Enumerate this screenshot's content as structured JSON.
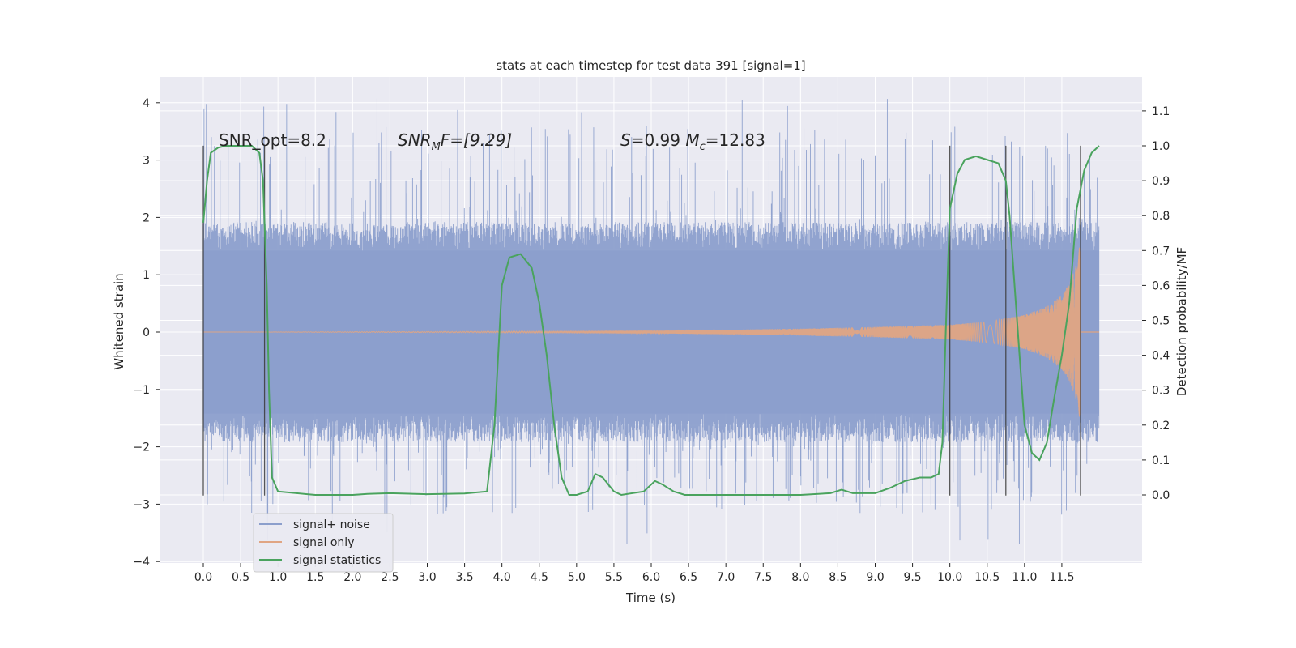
{
  "chart_data": {
    "type": "line",
    "title": "stats at each timestep for test data 391 [signal=1]",
    "xlabel": "Time (s)",
    "ylabel": "Whitened strain",
    "ylabel_right": "Detection probability/MF",
    "xlim": [
      -0.6,
      12.6
    ],
    "ylim": [
      -4.05,
      4.45
    ],
    "ylim_right": [
      -0.2,
      1.18
    ],
    "x_ticks": [
      "0.0",
      "0.5",
      "1.0",
      "1.5",
      "2.0",
      "2.5",
      "3.0",
      "3.5",
      "4.0",
      "4.5",
      "5.0",
      "5.5",
      "6.0",
      "6.5",
      "7.0",
      "7.5",
      "8.0",
      "8.5",
      "9.0",
      "9.5",
      "10.0",
      "10.5",
      "11.0",
      "11.5"
    ],
    "y_ticks": [
      "4",
      "3",
      "2",
      "1",
      "0",
      "−1",
      "−2",
      "−3",
      "−4"
    ],
    "y_ticks_right": [
      "1.1",
      "1.0",
      "0.9",
      "0.8",
      "0.7",
      "0.6",
      "0.5",
      "0.4",
      "0.3",
      "0.2",
      "0.1",
      "0.0"
    ],
    "grid": true,
    "legend_position": "bottom-left",
    "annotations": [
      {
        "text": "SNR_opt=8.2",
        "x": 0.2,
        "y": 3.2
      },
      {
        "text": "SNRₘF=[9.29]",
        "html_main": "SNR",
        "sub": "M",
        "tail": "F=[9.29]",
        "x": 2.6,
        "y": 3.2
      },
      {
        "text": "S=0.99  Mᶜ=12.83",
        "x": 5.6,
        "y": 3.2
      }
    ],
    "vertical_lines": [
      0.0,
      0.82,
      10.0,
      10.75,
      11.75
    ],
    "vertical_line_range": [
      -2.85,
      3.25
    ],
    "series": [
      {
        "name": "signal+ noise",
        "color": "#8c9fcc",
        "t_range": [
          0.0,
          12.0
        ],
        "band_abs": 1.42,
        "spike_max": 4.1,
        "spike_min": -3.7
      },
      {
        "name": "signal only",
        "color": "#e0a583",
        "t_range": [
          0.0,
          11.75
        ],
        "envelope": [
          [
            0.0,
            0.0
          ],
          [
            6.0,
            0.02
          ],
          [
            8.0,
            0.06
          ],
          [
            9.0,
            0.09
          ],
          [
            10.0,
            0.13
          ],
          [
            10.5,
            0.18
          ],
          [
            11.0,
            0.3
          ],
          [
            11.3,
            0.45
          ],
          [
            11.5,
            0.65
          ],
          [
            11.6,
            0.85
          ],
          [
            11.7,
            1.2
          ],
          [
            11.75,
            1.6
          ]
        ]
      },
      {
        "name": "signal statistics",
        "color": "#4aa35e",
        "axis": "right",
        "points": [
          [
            0.0,
            0.78
          ],
          [
            0.05,
            0.9
          ],
          [
            0.1,
            0.98
          ],
          [
            0.2,
            0.995
          ],
          [
            0.3,
            1.0
          ],
          [
            0.65,
            1.0
          ],
          [
            0.75,
            0.98
          ],
          [
            0.8,
            0.9
          ],
          [
            0.85,
            0.6
          ],
          [
            0.88,
            0.3
          ],
          [
            0.92,
            0.05
          ],
          [
            1.0,
            0.01
          ],
          [
            1.5,
            0.0
          ],
          [
            2.0,
            0.0
          ],
          [
            2.2,
            0.003
          ],
          [
            2.5,
            0.005
          ],
          [
            3.0,
            0.002
          ],
          [
            3.5,
            0.004
          ],
          [
            3.8,
            0.01
          ],
          [
            3.9,
            0.2
          ],
          [
            4.0,
            0.6
          ],
          [
            4.1,
            0.68
          ],
          [
            4.25,
            0.69
          ],
          [
            4.4,
            0.65
          ],
          [
            4.5,
            0.55
          ],
          [
            4.6,
            0.4
          ],
          [
            4.7,
            0.2
          ],
          [
            4.8,
            0.05
          ],
          [
            4.9,
            0.0
          ],
          [
            5.0,
            0.0
          ],
          [
            5.15,
            0.01
          ],
          [
            5.25,
            0.06
          ],
          [
            5.35,
            0.05
          ],
          [
            5.5,
            0.01
          ],
          [
            5.6,
            0.0
          ],
          [
            5.9,
            0.01
          ],
          [
            6.05,
            0.04
          ],
          [
            6.15,
            0.03
          ],
          [
            6.3,
            0.01
          ],
          [
            6.45,
            0.0
          ],
          [
            7.0,
            0.0
          ],
          [
            8.0,
            0.0
          ],
          [
            8.4,
            0.005
          ],
          [
            8.55,
            0.015
          ],
          [
            8.7,
            0.005
          ],
          [
            9.0,
            0.005
          ],
          [
            9.2,
            0.02
          ],
          [
            9.4,
            0.04
          ],
          [
            9.6,
            0.05
          ],
          [
            9.75,
            0.05
          ],
          [
            9.85,
            0.06
          ],
          [
            9.9,
            0.15
          ],
          [
            9.95,
            0.5
          ],
          [
            10.0,
            0.82
          ],
          [
            10.1,
            0.92
          ],
          [
            10.2,
            0.96
          ],
          [
            10.35,
            0.97
          ],
          [
            10.5,
            0.96
          ],
          [
            10.65,
            0.95
          ],
          [
            10.75,
            0.9
          ],
          [
            10.8,
            0.8
          ],
          [
            10.9,
            0.5
          ],
          [
            11.0,
            0.2
          ],
          [
            11.1,
            0.12
          ],
          [
            11.2,
            0.1
          ],
          [
            11.3,
            0.15
          ],
          [
            11.4,
            0.28
          ],
          [
            11.5,
            0.4
          ],
          [
            11.6,
            0.55
          ],
          [
            11.7,
            0.82
          ],
          [
            11.8,
            0.93
          ],
          [
            11.9,
            0.98
          ],
          [
            12.0,
            1.0
          ]
        ]
      }
    ]
  },
  "legend": {
    "items": [
      {
        "label": "signal+ noise",
        "color": "#8c9fcc"
      },
      {
        "label": "signal only",
        "color": "#e0a583"
      },
      {
        "label": "signal statistics",
        "color": "#4aa35e"
      }
    ]
  },
  "colors": {
    "plot_background": "#eaeaf2",
    "grid": "#ffffff",
    "vline": "#3a3a3a"
  }
}
